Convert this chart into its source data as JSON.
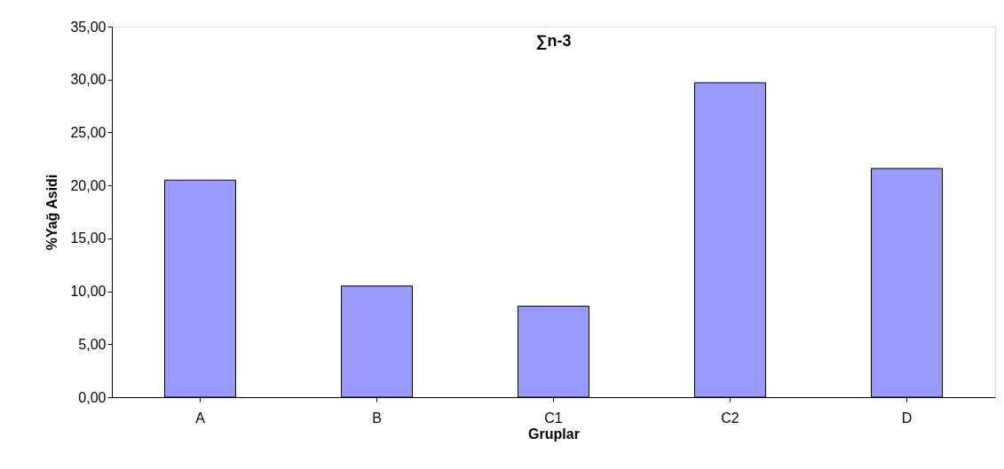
{
  "chart_data": {
    "type": "bar",
    "title": "∑n-3",
    "xlabel": "Gruplar",
    "ylabel": "%Yağ Asidi",
    "categories": [
      "A",
      "B",
      "C1",
      "C2",
      "D"
    ],
    "values": [
      20.5,
      10.5,
      8.6,
      29.7,
      21.6
    ],
    "color": "#9999ff",
    "ylim": [
      0,
      35
    ],
    "yticks": [
      {
        "value": 0,
        "label": "0,00"
      },
      {
        "value": 5,
        "label": "5,00"
      },
      {
        "value": 10,
        "label": "10,00"
      },
      {
        "value": 15,
        "label": "15,00"
      },
      {
        "value": 20,
        "label": "20,00"
      },
      {
        "value": 25,
        "label": "25,00"
      },
      {
        "value": 30,
        "label": "30,00"
      },
      {
        "value": 35,
        "label": "35,00"
      }
    ],
    "grid": false
  }
}
